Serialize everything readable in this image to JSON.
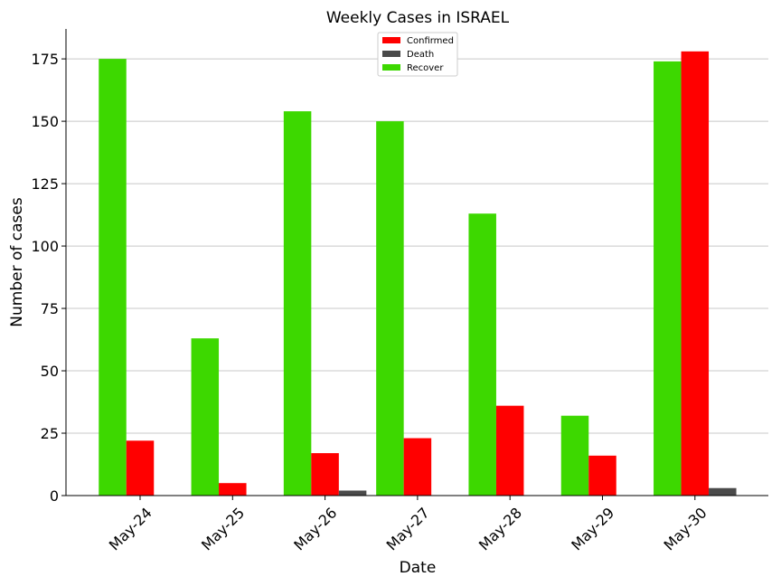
{
  "chart_data": {
    "type": "bar",
    "title": "Weekly Cases in ISRAEL",
    "xlabel": "Date",
    "ylabel": "Number of cases",
    "ylim": [
      0,
      187
    ],
    "yticks": [
      0,
      25,
      50,
      75,
      100,
      125,
      150,
      175
    ],
    "grid": "horizontal",
    "legend_position": "top-center",
    "categories": [
      "May-24",
      "May-25",
      "May-26",
      "May-27",
      "May-28",
      "May-29",
      "May-30"
    ],
    "series": [
      {
        "name": "Recover",
        "color": "#3dd800",
        "values": [
          175,
          63,
          154,
          150,
          113,
          32,
          174
        ]
      },
      {
        "name": "Confirmed",
        "color": "#ff0000",
        "values": [
          22,
          5,
          17,
          23,
          36,
          16,
          178
        ]
      },
      {
        "name": "Death",
        "color": "#4a4a4a",
        "values": [
          0,
          0,
          2,
          0,
          0,
          0,
          3
        ]
      }
    ],
    "legend": [
      "Confirmed",
      "Death",
      "Recover"
    ]
  }
}
